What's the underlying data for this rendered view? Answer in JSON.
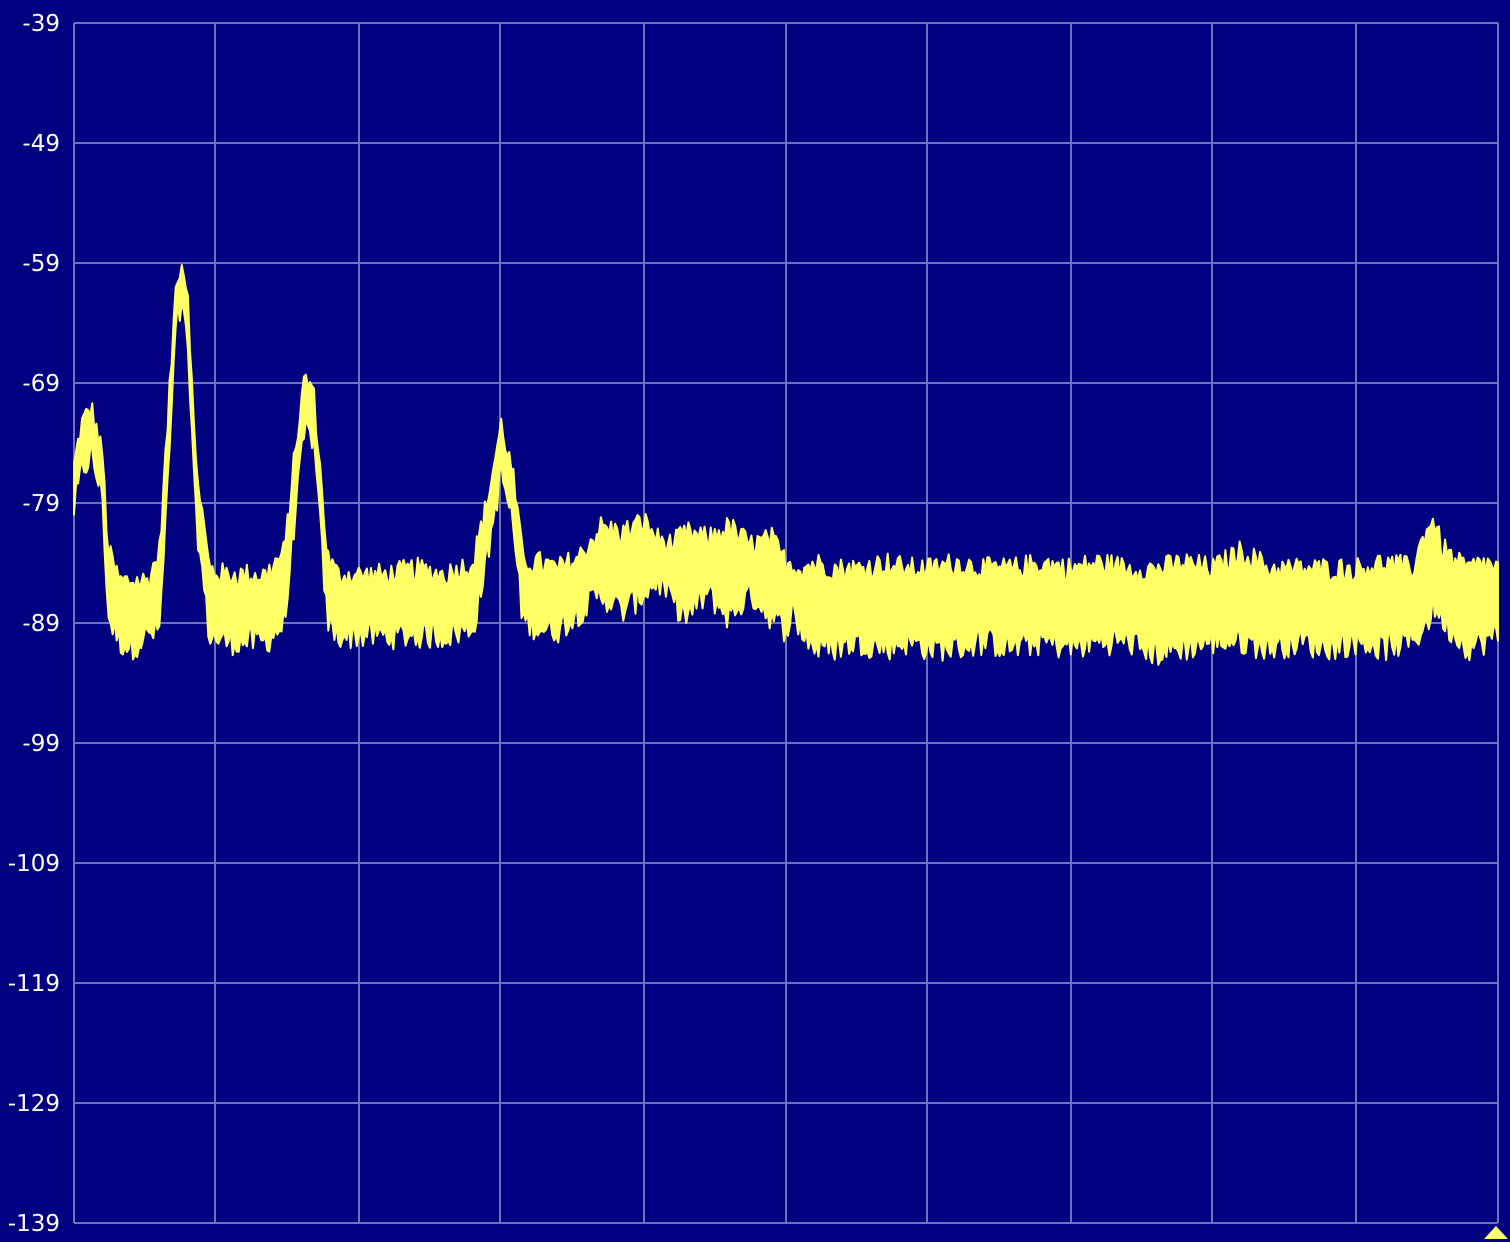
{
  "colors": {
    "background": "#000080",
    "grid": "#6c73b8",
    "trace": "#ffff66",
    "tick_text": "#ffffff",
    "marker": "#ffff66"
  },
  "chart_data": {
    "type": "area",
    "title": "",
    "xlabel": "",
    "ylabel": "",
    "ylim": [
      -139,
      -39
    ],
    "xlim": [
      0,
      10
    ],
    "yticks": [
      "-39",
      "-49",
      "-59",
      "-69",
      "-79",
      "-89",
      "-99",
      "-109",
      "-119",
      "-129",
      "-139"
    ],
    "xticks": [],
    "grid": true,
    "vertical_divisions": 10,
    "legend": "none",
    "series": [
      {
        "x": [
          0.0,
          0.05,
          0.12,
          0.2,
          0.24,
          0.32,
          0.4,
          0.52,
          0.6,
          0.66,
          0.72,
          0.76,
          0.8,
          0.85,
          0.95,
          1.05,
          1.2,
          1.35,
          1.48,
          1.55,
          1.62,
          1.68,
          1.72,
          1.78,
          1.85,
          2.0,
          2.2,
          2.4,
          2.6,
          2.8,
          2.9,
          3.0,
          3.08,
          3.15,
          3.2,
          3.28,
          3.4,
          3.55,
          3.7,
          3.85,
          4.0,
          4.1,
          4.2,
          4.3,
          4.45,
          4.6,
          4.75,
          4.9,
          5.0,
          5.04,
          5.1,
          5.2,
          5.35,
          5.5,
          5.7,
          5.85,
          6.0,
          6.2,
          6.4,
          6.6,
          6.8,
          7.0,
          7.2,
          7.4,
          7.6,
          7.8,
          8.0,
          8.2,
          8.4,
          8.6,
          8.8,
          9.0,
          9.2,
          9.4,
          9.5,
          9.55,
          9.6,
          9.7,
          9.8,
          9.9,
          10.0
        ],
        "upper": [
          -76.0,
          -72.5,
          -71.0,
          -75.0,
          -83.0,
          -85.5,
          -85.5,
          -85.5,
          -83.0,
          -72.0,
          -60.0,
          -59.0,
          -61.5,
          -75.0,
          -84.5,
          -85.0,
          -85.0,
          -85.0,
          -83.0,
          -75.0,
          -68.5,
          -69.5,
          -75.0,
          -83.5,
          -85.0,
          -85.0,
          -85.0,
          -84.5,
          -85.0,
          -84.0,
          -79.0,
          -72.5,
          -76.5,
          -83.5,
          -84.0,
          -84.0,
          -84.5,
          -83.5,
          -81.0,
          -81.5,
          -80.5,
          -82.0,
          -82.5,
          -81.5,
          -82.0,
          -81.0,
          -82.5,
          -82.0,
          -84.0,
          -84.0,
          -84.5,
          -84.0,
          -84.5,
          -84.5,
          -84.0,
          -84.5,
          -84.5,
          -84.0,
          -84.5,
          -84.5,
          -84.0,
          -84.5,
          -84.0,
          -84.5,
          -84.5,
          -84.0,
          -84.5,
          -83.0,
          -84.5,
          -84.5,
          -84.5,
          -84.5,
          -84.0,
          -84.5,
          -81.0,
          -80.5,
          -82.5,
          -84.0,
          -84.5,
          -84.0,
          -84.5
        ],
        "lower": [
          -79.5,
          -76.5,
          -75.0,
          -78.5,
          -88.5,
          -90.5,
          -91.0,
          -90.0,
          -89.5,
          -77.0,
          -63.5,
          -63.0,
          -66.0,
          -79.5,
          -90.0,
          -90.5,
          -90.5,
          -90.5,
          -89.0,
          -80.0,
          -73.0,
          -73.5,
          -79.5,
          -89.0,
          -90.0,
          -90.0,
          -90.0,
          -90.0,
          -90.0,
          -89.5,
          -83.5,
          -76.5,
          -80.5,
          -88.5,
          -89.0,
          -89.5,
          -89.5,
          -88.0,
          -86.5,
          -88.0,
          -86.5,
          -85.5,
          -87.0,
          -88.5,
          -86.5,
          -88.5,
          -86.5,
          -88.5,
          -89.5,
          -88.0,
          -89.5,
          -91.0,
          -91.0,
          -90.5,
          -91.0,
          -90.5,
          -91.0,
          -91.0,
          -90.5,
          -91.0,
          -90.5,
          -91.0,
          -90.5,
          -90.5,
          -91.5,
          -91.0,
          -90.5,
          -90.5,
          -91.0,
          -90.5,
          -91.0,
          -90.5,
          -91.0,
          -90.5,
          -89.0,
          -87.5,
          -88.5,
          -90.0,
          -91.0,
          -90.5,
          -90.0
        ]
      }
    ]
  }
}
